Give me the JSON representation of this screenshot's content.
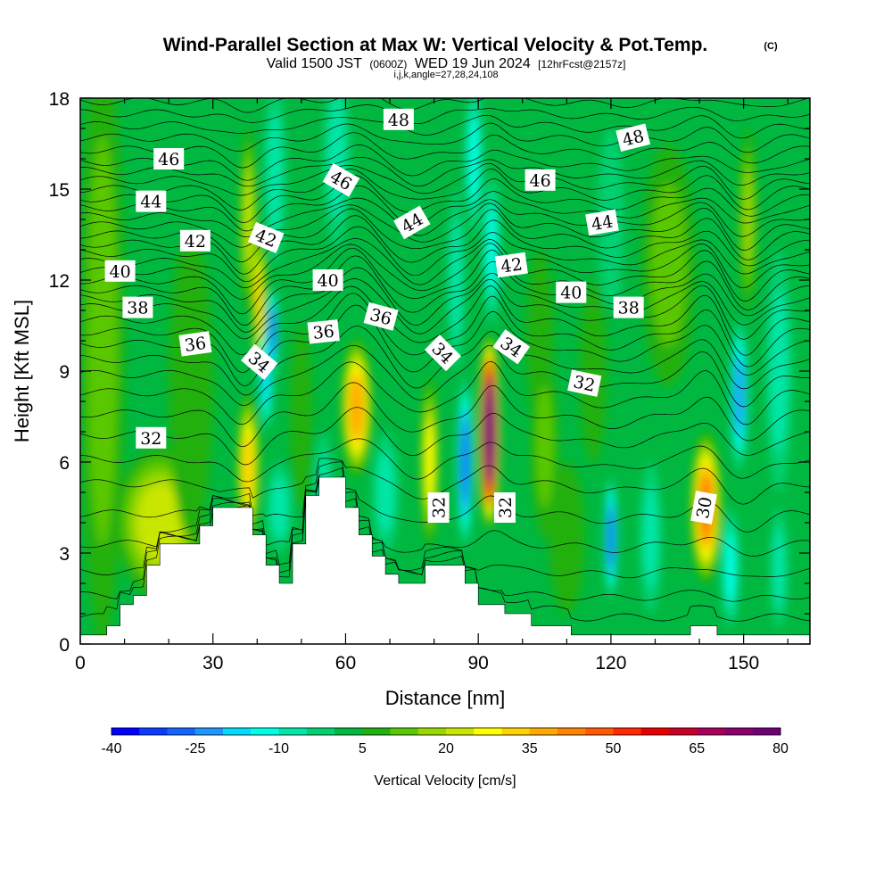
{
  "header": {
    "title": "Wind-Parallel Section at Max W: Vertical Velocity & Pot.Temp.",
    "copyright": "(C)",
    "valid_prefix": "Valid 1500 JST",
    "valid_utc": "(0600Z)",
    "valid_date": "WED 19 Jun 2024",
    "forecast": "[12hrFcst@2157z]",
    "indices": "i,j,k,angle=27,28,24,108"
  },
  "chart_data": {
    "type": "contour-section",
    "title": "Wind-Parallel Section at Max W: Vertical Velocity & Pot.Temp.",
    "xlabel": "Distance [nm]",
    "ylabel": "Height [Kft MSL]",
    "xlim": [
      0,
      165
    ],
    "ylim": [
      0,
      18
    ],
    "xticks": [
      "0",
      "30",
      "60",
      "90",
      "120",
      "150"
    ],
    "yticks": [
      "0",
      "3",
      "6",
      "9",
      "12",
      "15",
      "18"
    ],
    "colorbar": {
      "label": "Vertical Velocity [cm/s]",
      "tick_labels": [
        "-40",
        "-25",
        "-10",
        "5",
        "20",
        "35",
        "50",
        "65",
        "80"
      ],
      "colors": [
        "#0000ff",
        "#0a3cff",
        "#1464ff",
        "#1e96ff",
        "#00dcff",
        "#00ffe8",
        "#00e6a8",
        "#00d070",
        "#00b840",
        "#20b010",
        "#5ac800",
        "#9ad600",
        "#c8e600",
        "#ffff00",
        "#ffd200",
        "#ffaa00",
        "#ff8200",
        "#ff5a00",
        "#ff2800",
        "#e80000",
        "#c80028",
        "#a8005a",
        "#8c006e",
        "#6e0078"
      ]
    },
    "vertical_velocity_cells": [
      {
        "x": 5,
        "h": 10.0,
        "w": 5,
        "dh": 10.0,
        "v": 8
      },
      {
        "x": 18,
        "h": 4.0,
        "w": 10,
        "dh": 2.5,
        "v": 18
      },
      {
        "x": 25,
        "h": 8.5,
        "w": 5,
        "dh": 5.0,
        "v": 6
      },
      {
        "x": 38,
        "h": 5.8,
        "w": 2.5,
        "dh": 2.5,
        "v": 28
      },
      {
        "x": 38,
        "h": 14.0,
        "w": 1.8,
        "dh": 3.0,
        "v": 18
      },
      {
        "x": 40.5,
        "h": 11.2,
        "w": 1.5,
        "dh": 2.5,
        "v": 28
      },
      {
        "x": 42,
        "h": 8.8,
        "w": 1.6,
        "dh": 1.8,
        "v": -22
      },
      {
        "x": 43.5,
        "h": 10.3,
        "w": 1.3,
        "dh": 1.5,
        "v": -28
      },
      {
        "x": 45,
        "h": 4.5,
        "w": 3,
        "dh": 1.5,
        "v": -10
      },
      {
        "x": 44,
        "h": 15.5,
        "w": 2.5,
        "dh": 3.0,
        "v": -12
      },
      {
        "x": 50,
        "h": 7.5,
        "w": 2.5,
        "dh": 3.0,
        "v": 6
      },
      {
        "x": 55,
        "h": 5.0,
        "w": 2,
        "dh": 2.0,
        "v": -8
      },
      {
        "x": 58,
        "h": 16.0,
        "w": 3,
        "dh": 3.0,
        "v": -12
      },
      {
        "x": 62.5,
        "h": 7.8,
        "w": 3.5,
        "dh": 2.3,
        "v": 35
      },
      {
        "x": 69,
        "h": 5.0,
        "w": 3,
        "dh": 2.0,
        "v": -10
      },
      {
        "x": 79,
        "h": 6.0,
        "w": 2,
        "dh": 2.8,
        "v": 26
      },
      {
        "x": 87,
        "h": 6.0,
        "w": 1.8,
        "dh": 2.8,
        "v": -32
      },
      {
        "x": 85,
        "h": 12.0,
        "w": 2,
        "dh": 3.0,
        "v": -8
      },
      {
        "x": 92.5,
        "h": 7.0,
        "w": 2.4,
        "dh": 3.2,
        "v": 88
      },
      {
        "x": 93,
        "h": 13.0,
        "w": 2,
        "dh": 2.5,
        "v": -14
      },
      {
        "x": 89,
        "h": 16.0,
        "w": 2,
        "dh": 2.5,
        "v": -14
      },
      {
        "x": 104,
        "h": 10.0,
        "w": 3,
        "dh": 3.0,
        "v": 6
      },
      {
        "x": 105,
        "h": 6.5,
        "w": 3,
        "dh": 3.0,
        "v": 8
      },
      {
        "x": 110,
        "h": 3.5,
        "w": 4,
        "dh": 2.5,
        "v": 6
      },
      {
        "x": 120,
        "h": 3.5,
        "w": 1.5,
        "dh": 2.0,
        "v": -30
      },
      {
        "x": 116,
        "h": 9.0,
        "w": 3,
        "dh": 3.0,
        "v": 6
      },
      {
        "x": 120,
        "h": 14.0,
        "w": 3,
        "dh": 3.0,
        "v": -6
      },
      {
        "x": 129,
        "h": 3.5,
        "w": 2.5,
        "dh": 2.5,
        "v": -8
      },
      {
        "x": 133,
        "h": 12.5,
        "w": 6,
        "dh": 4.0,
        "v": 8
      },
      {
        "x": 141.5,
        "h": 4.5,
        "w": 3.5,
        "dh": 2.5,
        "v": 42
      },
      {
        "x": 147,
        "h": 2.5,
        "w": 2,
        "dh": 2.0,
        "v": -14
      },
      {
        "x": 149,
        "h": 8.2,
        "w": 2,
        "dh": 2.5,
        "v": -26
      },
      {
        "x": 151,
        "h": 14.0,
        "w": 2,
        "dh": 3.0,
        "v": 16
      },
      {
        "x": 158,
        "h": 2.5,
        "w": 2,
        "dh": 2.0,
        "v": -12
      },
      {
        "x": 158,
        "h": 9.0,
        "w": 3,
        "dh": 4.0,
        "v": -8
      }
    ],
    "terrain": [
      {
        "x": 0,
        "h": 0.3
      },
      {
        "x": 6,
        "h": 0.3
      },
      {
        "x": 6,
        "h": 0.6
      },
      {
        "x": 9,
        "h": 0.6
      },
      {
        "x": 9,
        "h": 1.3
      },
      {
        "x": 12,
        "h": 1.3
      },
      {
        "x": 12,
        "h": 1.6
      },
      {
        "x": 15,
        "h": 1.6
      },
      {
        "x": 15,
        "h": 2.6
      },
      {
        "x": 18,
        "h": 2.6
      },
      {
        "x": 18,
        "h": 3.3
      },
      {
        "x": 27,
        "h": 3.3
      },
      {
        "x": 27,
        "h": 3.9
      },
      {
        "x": 30,
        "h": 3.9
      },
      {
        "x": 30,
        "h": 4.5
      },
      {
        "x": 39,
        "h": 4.5
      },
      {
        "x": 39,
        "h": 3.6
      },
      {
        "x": 42,
        "h": 3.6
      },
      {
        "x": 42,
        "h": 2.6
      },
      {
        "x": 45,
        "h": 2.6
      },
      {
        "x": 45,
        "h": 2.0
      },
      {
        "x": 48,
        "h": 2.0
      },
      {
        "x": 48,
        "h": 3.3
      },
      {
        "x": 51,
        "h": 3.3
      },
      {
        "x": 51,
        "h": 4.9
      },
      {
        "x": 54,
        "h": 4.9
      },
      {
        "x": 54,
        "h": 5.5
      },
      {
        "x": 60,
        "h": 5.5
      },
      {
        "x": 60,
        "h": 4.5
      },
      {
        "x": 63,
        "h": 4.5
      },
      {
        "x": 63,
        "h": 3.6
      },
      {
        "x": 66,
        "h": 3.6
      },
      {
        "x": 66,
        "h": 2.9
      },
      {
        "x": 69,
        "h": 2.9
      },
      {
        "x": 69,
        "h": 2.3
      },
      {
        "x": 72,
        "h": 2.3
      },
      {
        "x": 72,
        "h": 2.0
      },
      {
        "x": 78,
        "h": 2.0
      },
      {
        "x": 78,
        "h": 2.6
      },
      {
        "x": 87,
        "h": 2.6
      },
      {
        "x": 87,
        "h": 2.0
      },
      {
        "x": 90,
        "h": 2.0
      },
      {
        "x": 90,
        "h": 1.3
      },
      {
        "x": 96,
        "h": 1.3
      },
      {
        "x": 96,
        "h": 1.0
      },
      {
        "x": 102,
        "h": 1.0
      },
      {
        "x": 102,
        "h": 0.6
      },
      {
        "x": 111,
        "h": 0.6
      },
      {
        "x": 111,
        "h": 0.3
      },
      {
        "x": 138,
        "h": 0.3
      },
      {
        "x": 138,
        "h": 0.6
      },
      {
        "x": 144,
        "h": 0.6
      },
      {
        "x": 144,
        "h": 0.3
      },
      {
        "x": 165,
        "h": 0.3
      }
    ],
    "isentropes": {
      "base_level_theta": 30,
      "levels": [
        {
          "theta": 30,
          "h": 0.8
        },
        {
          "theta": 30.5,
          "h": 1.6
        },
        {
          "theta": 31,
          "h": 2.4
        },
        {
          "theta": 31.5,
          "h": 3.3
        },
        {
          "theta": 32,
          "h": 4.3
        },
        {
          "theta": 32.5,
          "h": 5.3
        },
        {
          "theta": 33,
          "h": 6.1
        },
        {
          "theta": 33.5,
          "h": 6.9
        },
        {
          "theta": 34,
          "h": 7.6
        },
        {
          "theta": 34.5,
          "h": 8.3
        },
        {
          "theta": 35,
          "h": 8.9
        },
        {
          "theta": 35.5,
          "h": 9.4
        },
        {
          "theta": 36,
          "h": 9.9
        },
        {
          "theta": 36.5,
          "h": 10.3
        },
        {
          "theta": 37,
          "h": 10.7
        },
        {
          "theta": 37.5,
          "h": 11.1
        },
        {
          "theta": 38,
          "h": 11.4
        },
        {
          "theta": 38.5,
          "h": 11.7
        },
        {
          "theta": 39,
          "h": 12.0
        },
        {
          "theta": 39.5,
          "h": 12.3
        },
        {
          "theta": 40,
          "h": 12.6
        },
        {
          "theta": 40.5,
          "h": 12.9
        },
        {
          "theta": 41,
          "h": 13.2
        },
        {
          "theta": 41.5,
          "h": 13.5
        },
        {
          "theta": 42,
          "h": 13.8
        },
        {
          "theta": 42.5,
          "h": 14.1
        },
        {
          "theta": 43,
          "h": 14.4
        },
        {
          "theta": 43.5,
          "h": 14.7
        },
        {
          "theta": 44,
          "h": 15.0
        },
        {
          "theta": 44.5,
          "h": 15.3
        },
        {
          "theta": 45,
          "h": 15.6
        },
        {
          "theta": 45.5,
          "h": 15.9
        },
        {
          "theta": 46,
          "h": 16.3
        },
        {
          "theta": 46.5,
          "h": 16.7
        },
        {
          "theta": 47,
          "h": 17.1
        },
        {
          "theta": 47.5,
          "h": 17.5
        },
        {
          "theta": 48,
          "h": 17.9
        }
      ],
      "perturbations": [
        {
          "x": 37,
          "w": 5,
          "dh": -1.3
        },
        {
          "x": 62,
          "w": 6,
          "dh": 1.2
        },
        {
          "x": 76,
          "w": 6,
          "dh": -0.9
        },
        {
          "x": 93,
          "w": 4,
          "dh": 1.1
        },
        {
          "x": 120,
          "w": 10,
          "dh": -0.5
        },
        {
          "x": 142,
          "w": 5,
          "dh": 0.9
        },
        {
          "x": 150,
          "w": 6,
          "dh": -1.2
        }
      ]
    },
    "contour_labels": [
      {
        "text": "48",
        "x": 72,
        "h": 17.3,
        "rot": 0
      },
      {
        "text": "48",
        "x": 125,
        "h": 16.7,
        "rot": -14
      },
      {
        "text": "46",
        "x": 20,
        "h": 16.0,
        "rot": 0
      },
      {
        "text": "46",
        "x": 59,
        "h": 15.3,
        "rot": 30
      },
      {
        "text": "46",
        "x": 104,
        "h": 15.3,
        "rot": 0
      },
      {
        "text": "44",
        "x": 16,
        "h": 14.6,
        "rot": 0
      },
      {
        "text": "44",
        "x": 75,
        "h": 13.9,
        "rot": -30
      },
      {
        "text": "44",
        "x": 118,
        "h": 13.9,
        "rot": -10
      },
      {
        "text": "42",
        "x": 26,
        "h": 13.3,
        "rot": 0
      },
      {
        "text": "42",
        "x": 42,
        "h": 13.4,
        "rot": 22
      },
      {
        "text": "42",
        "x": 97.5,
        "h": 12.5,
        "rot": -8
      },
      {
        "text": "40",
        "x": 9,
        "h": 12.3,
        "rot": 0
      },
      {
        "text": "40",
        "x": 56,
        "h": 12.0,
        "rot": 0
      },
      {
        "text": "40",
        "x": 111,
        "h": 11.6,
        "rot": 0
      },
      {
        "text": "38",
        "x": 13,
        "h": 11.1,
        "rot": 0
      },
      {
        "text": "38",
        "x": 124,
        "h": 11.1,
        "rot": 0
      },
      {
        "text": "36",
        "x": 26,
        "h": 9.9,
        "rot": -8
      },
      {
        "text": "36",
        "x": 55,
        "h": 10.3,
        "rot": -6
      },
      {
        "text": "36",
        "x": 68,
        "h": 10.8,
        "rot": 15
      },
      {
        "text": "34",
        "x": 40.5,
        "h": 9.3,
        "rot": 40
      },
      {
        "text": "34",
        "x": 82,
        "h": 9.6,
        "rot": 45
      },
      {
        "text": "34",
        "x": 97.5,
        "h": 9.8,
        "rot": 35
      },
      {
        "text": "32",
        "x": 16,
        "h": 6.8,
        "rot": 0
      },
      {
        "text": "32",
        "x": 114,
        "h": 8.6,
        "rot": 12
      },
      {
        "text": "32",
        "x": 81,
        "h": 4.5,
        "rot": -90
      },
      {
        "text": "32",
        "x": 96,
        "h": 4.5,
        "rot": -90
      },
      {
        "text": "30",
        "x": 141,
        "h": 4.5,
        "rot": -80
      }
    ]
  }
}
